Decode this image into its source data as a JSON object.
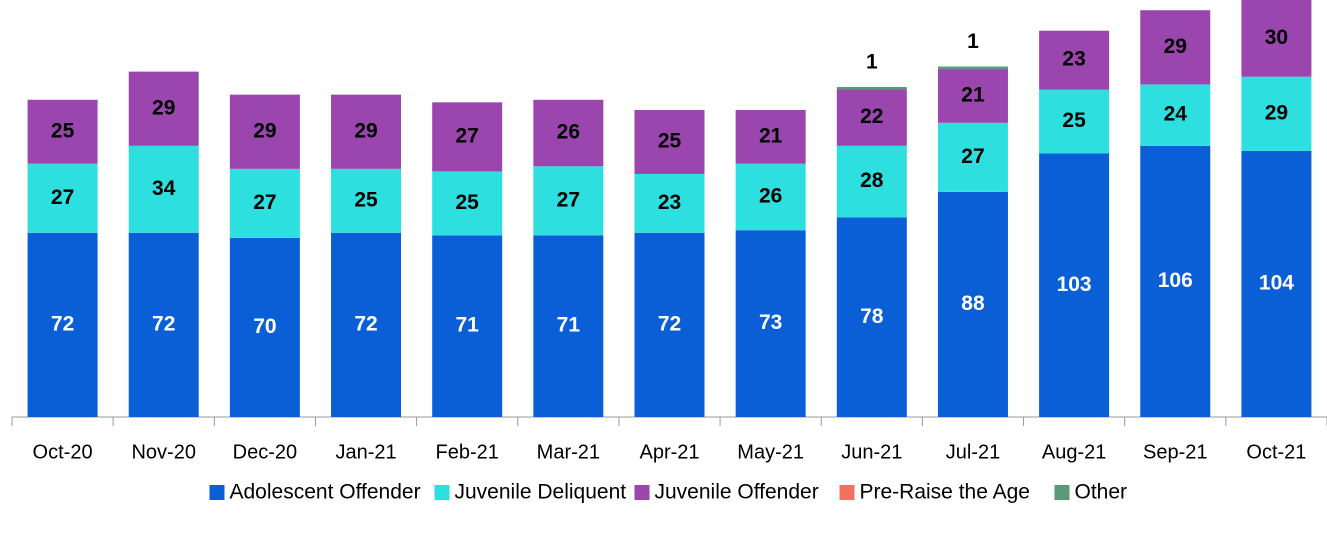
{
  "chart_data": {
    "type": "stacked-bar",
    "categories": [
      "Oct-20",
      "Nov-20",
      "Dec-20",
      "Jan-21",
      "Feb-21",
      "Mar-21",
      "Apr-21",
      "May-21",
      "Jun-21",
      "Jul-21",
      "Aug-21",
      "Sep-21",
      "Oct-21"
    ],
    "series": [
      {
        "name": "Adolescent Offender",
        "color": "#0b5fd6",
        "values": [
          72,
          72,
          70,
          72,
          71,
          71,
          72,
          73,
          78,
          88,
          103,
          106,
          104
        ]
      },
      {
        "name": "Juvenile Deliquent",
        "color": "#2edfdf",
        "values": [
          27,
          34,
          27,
          25,
          25,
          27,
          23,
          26,
          28,
          27,
          25,
          24,
          29
        ]
      },
      {
        "name": "Juvenile Offender",
        "color": "#9a46ae",
        "values": [
          25,
          29,
          29,
          29,
          27,
          26,
          25,
          21,
          22,
          21,
          23,
          29,
          30
        ]
      },
      {
        "name": "Pre-Raise the Age",
        "color": "#f2705e",
        "values": [
          null,
          null,
          null,
          null,
          null,
          null,
          null,
          null,
          null,
          null,
          null,
          null,
          null
        ]
      },
      {
        "name": "Other",
        "color": "#5b9a78",
        "values": [
          null,
          null,
          null,
          null,
          null,
          null,
          null,
          null,
          1,
          1,
          null,
          null,
          null
        ]
      }
    ],
    "ylim": [
      0,
      163
    ]
  }
}
